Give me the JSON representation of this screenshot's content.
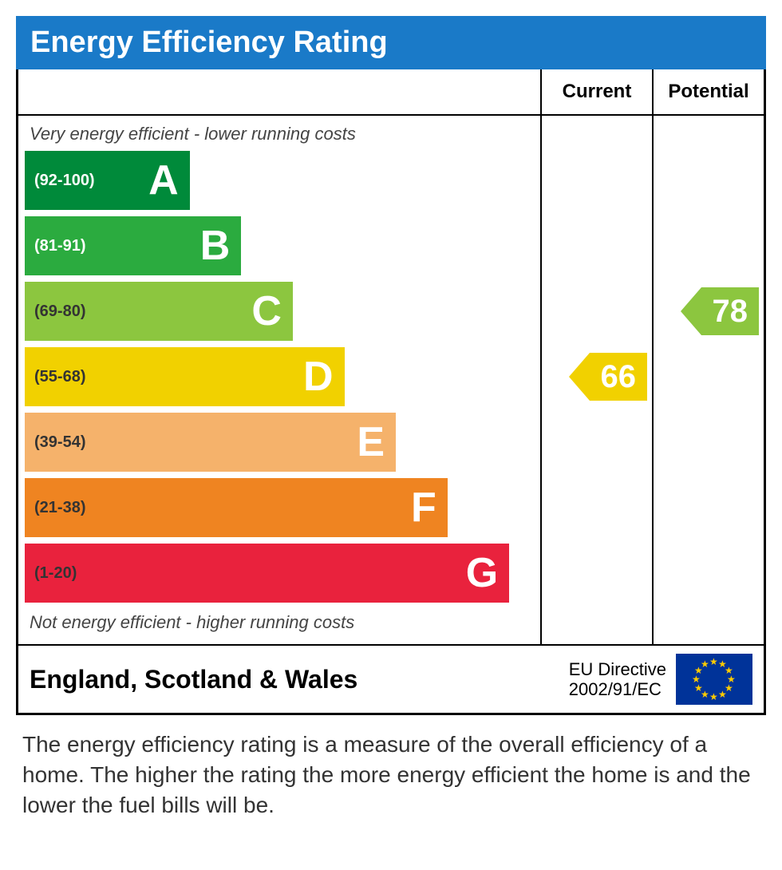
{
  "title": "Energy Efficiency Rating",
  "title_bg": "#1a7ac8",
  "header": {
    "current": "Current",
    "potential": "Potential"
  },
  "top_note": "Very energy efficient - lower running costs",
  "bottom_note": "Not energy efficient - higher running costs",
  "bands": [
    {
      "letter": "A",
      "range": "(92-100)",
      "width_pct": 32,
      "bg": "#008a3a",
      "range_color": "#ffffff",
      "letter_color": "#ffffff"
    },
    {
      "letter": "B",
      "range": "(81-91)",
      "width_pct": 42,
      "bg": "#2bab3f",
      "range_color": "#ffffff",
      "letter_color": "#ffffff"
    },
    {
      "letter": "C",
      "range": "(69-80)",
      "width_pct": 52,
      "bg": "#8cc63f",
      "range_color": "#333333",
      "letter_color": "#ffffff"
    },
    {
      "letter": "D",
      "range": "(55-68)",
      "width_pct": 62,
      "bg": "#f1d100",
      "range_color": "#333333",
      "letter_color": "#ffffff"
    },
    {
      "letter": "E",
      "range": "(39-54)",
      "width_pct": 72,
      "bg": "#f5b26b",
      "range_color": "#333333",
      "letter_color": "#ffffff"
    },
    {
      "letter": "F",
      "range": "(21-38)",
      "width_pct": 82,
      "bg": "#ef8421",
      "range_color": "#333333",
      "letter_color": "#ffffff"
    },
    {
      "letter": "G",
      "range": "(1-20)",
      "width_pct": 94,
      "bg": "#e9223d",
      "range_color": "#333333",
      "letter_color": "#ffffff"
    }
  ],
  "current": {
    "value": "66",
    "band_index": 3,
    "bg": "#f1d100",
    "text": "#ffffff"
  },
  "potential": {
    "value": "78",
    "band_index": 2,
    "bg": "#8cc63f",
    "text": "#ffffff"
  },
  "footer": {
    "region": "England, Scotland & Wales",
    "directive_line1": "EU Directive",
    "directive_line2": "2002/91/EC"
  },
  "caption": "The energy efficiency rating is a measure of the overall efficiency of a home. The higher the rating the more energy efficient the home is and the lower the fuel bills will be."
}
